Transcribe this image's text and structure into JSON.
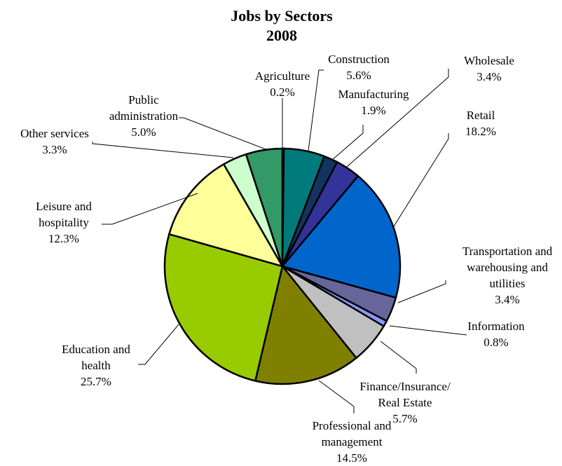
{
  "chart_data": {
    "type": "pie",
    "title": "Jobs by Sectors",
    "subtitle": "2008",
    "unit": "%",
    "slices": [
      {
        "name": "Agriculture",
        "label_lines": [
          "Agriculture"
        ],
        "value": 0.2,
        "value_label": "0.2%",
        "color": "#2f6b2f"
      },
      {
        "name": "Construction",
        "label_lines": [
          "Construction"
        ],
        "value": 5.6,
        "value_label": "5.6%",
        "color": "#007a7a"
      },
      {
        "name": "Manufacturing",
        "label_lines": [
          "Manufacturing"
        ],
        "value": 1.9,
        "value_label": "1.9%",
        "color": "#12345e"
      },
      {
        "name": "Wholesale",
        "label_lines": [
          "Wholesale"
        ],
        "value": 3.4,
        "value_label": "3.4%",
        "color": "#33339a"
      },
      {
        "name": "Retail",
        "label_lines": [
          "Retail"
        ],
        "value": 18.2,
        "value_label": "18.2%",
        "color": "#0066cc"
      },
      {
        "name": "Transportation and warehousing and utilities",
        "label_lines": [
          "Transportation and",
          "warehousing and",
          "utilities"
        ],
        "value": 3.4,
        "value_label": "3.4%",
        "color": "#66669a"
      },
      {
        "name": "Information",
        "label_lines": [
          "Information"
        ],
        "value": 0.8,
        "value_label": "0.8%",
        "color": "#8899ff"
      },
      {
        "name": "Finance/Insurance/ Real Estate",
        "label_lines": [
          "Finance/Insurance/",
          "Real Estate"
        ],
        "value": 5.7,
        "value_label": "5.7%",
        "color": "#c0c0c0"
      },
      {
        "name": "Professional and management",
        "label_lines": [
          "Professional and",
          "management"
        ],
        "value": 14.5,
        "value_label": "14.5%",
        "color": "#808000"
      },
      {
        "name": "Education and health",
        "label_lines": [
          "Education and",
          "health"
        ],
        "value": 25.7,
        "value_label": "25.7%",
        "color": "#99cc00"
      },
      {
        "name": "Leisure and hospitality",
        "label_lines": [
          "Leisure and",
          "hospitality"
        ],
        "value": 12.3,
        "value_label": "12.3%",
        "color": "#ffff99"
      },
      {
        "name": "Other services",
        "label_lines": [
          "Other services"
        ],
        "value": 3.3,
        "value_label": "3.3%",
        "color": "#ccffcc"
      },
      {
        "name": "Public administration",
        "label_lines": [
          "Public",
          "administration"
        ],
        "value": 5.0,
        "value_label": "5.0%",
        "color": "#339966"
      }
    ]
  }
}
